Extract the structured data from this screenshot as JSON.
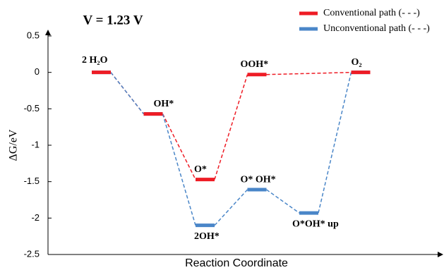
{
  "chart_data": {
    "type": "energy-diagram",
    "title": "V = 1.23 V",
    "y_label": "ΔG/eV",
    "x_label": "Reaction Coordinate",
    "categories": [
      null,
      null,
      null,
      null,
      null,
      null
    ],
    "ylim": [
      -2.5,
      0.5
    ],
    "yticks": [
      -2.5,
      -2.0,
      -1.5,
      -1.0,
      -0.5,
      0.0,
      0.5
    ],
    "legend": "top-right",
    "series": [
      {
        "name": "Conventional path (- - -)",
        "color": "#ee1c25",
        "values": [
          0.0,
          -0.57,
          -1.47,
          -0.03,
          null,
          0.0
        ],
        "point_labels": [
          "2 H₂O",
          "OH*",
          "O*",
          "OOH*",
          null,
          "O₂"
        ]
      },
      {
        "name": "Unconventional path (- - -)",
        "color": "#4a86c8",
        "values": [
          0.0,
          -0.57,
          -2.1,
          -1.61,
          -1.93,
          0.0
        ],
        "point_labels": [
          null,
          null,
          "2OH*",
          "O* OH*",
          "O*OH* up",
          null
        ]
      }
    ]
  }
}
